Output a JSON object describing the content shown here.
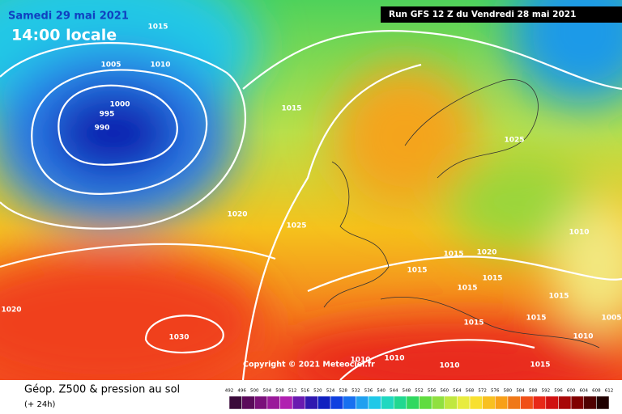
{
  "header": {
    "date": "Samedi 29 mai 2021",
    "time": "14:00 locale",
    "run": "Run GFS 12 Z du Vendredi 28 mai 2021"
  },
  "isobar_labels": [
    "1015",
    "1005",
    "1010",
    "1000",
    "995",
    "990",
    "1015",
    "1025",
    "1020",
    "1025",
    "1010",
    "1015",
    "1015",
    "1020",
    "1015",
    "1015",
    "1015",
    "1020",
    "1030",
    "1015",
    "1015",
    "1005",
    "1010",
    "1010",
    "1010",
    "1010",
    "1015"
  ],
  "copyright": "Copyright © 2021 Meteociel.fr",
  "legend": {
    "title": "Géop. Z500 & pression au sol",
    "subtitle": "(+ 24h)",
    "scale": [
      492,
      496,
      500,
      504,
      508,
      512,
      516,
      520,
      524,
      528,
      532,
      536,
      540,
      544,
      548,
      552,
      556,
      560,
      564,
      568,
      572,
      576,
      580,
      584,
      588,
      592,
      596,
      600,
      604,
      608,
      612
    ]
  }
}
